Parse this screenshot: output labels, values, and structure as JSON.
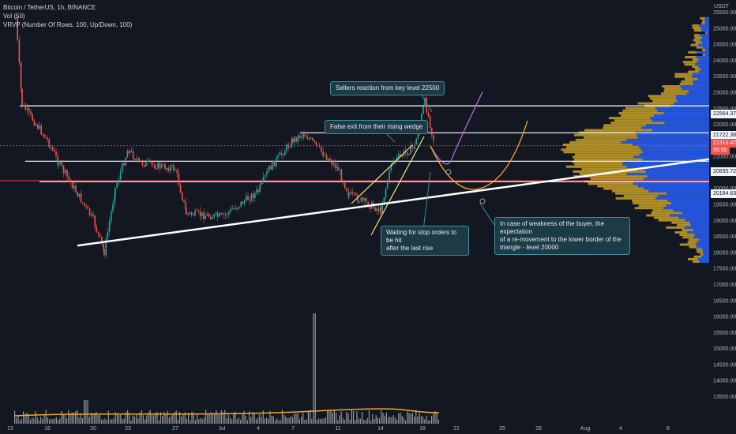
{
  "header": {
    "title": "Bitcoin / TetherUS, 1h, BINANCE",
    "vol": "Vol (50)",
    "vrvp": "VRVP (Number Of Rows, 100, Up/Down, 100)"
  },
  "currency": "USDT",
  "annotations": {
    "sellers": "Sellers reaction from key level 22500",
    "false_exit": "False exit from their rising wedge",
    "stop_orders": "Waiting for stop orders to be hit\nafter the last rise",
    "weakness": "In case of weakness of the buyer, the expectation\nof a re-movement to the lower border of the\ntriangle - level 20000"
  },
  "price_tags": {
    "level_22564": "22564.37",
    "level_21722": "21722.38",
    "current_price": "21316.47",
    "countdown": "55:55",
    "level_20835": "20835.72",
    "level_20194": "20194.63"
  },
  "colors": {
    "background": "#131722",
    "up_candle": "#26a69a",
    "down_candle": "#ef5350",
    "wedge": "#f7e27a",
    "purple_path": "#b06ad8",
    "orange_path": "#f5a623",
    "profile_up": "#2962ff",
    "profile_down": "#c9a227",
    "volume": "#c0c0c0"
  },
  "chart_data": {
    "type": "candlestick",
    "symbol": "Bitcoin / TetherUS",
    "interval": "1h",
    "exchange": "BINANCE",
    "y_axis": {
      "unit": "USDT",
      "ticks": [
        25500,
        25000,
        24500,
        24000,
        23500,
        23000,
        22500,
        22000,
        21500,
        21000,
        20500,
        20000,
        19500,
        19000,
        18500,
        18000,
        17500,
        17000,
        16500,
        16000,
        15500,
        15000,
        14500,
        14000,
        13500
      ],
      "tick_labels": [
        "25500.00",
        "25000.00",
        "24500.00",
        "24000.00",
        "23500.00",
        "23000.00",
        "22500.00",
        "22000.00",
        "21500.00",
        "21000.00",
        "20500.00",
        "20000.00",
        "19500.00",
        "19000.00",
        "18500.00",
        "18000.00",
        "17500.00",
        "17000.00",
        "16500.00",
        "16000.00",
        "15500.00",
        "15000.00",
        "14500.00",
        "14000.00",
        "13500.00"
      ]
    },
    "x_axis": {
      "labels": [
        "13",
        "16",
        "20",
        "23",
        "27",
        "Jul",
        "4",
        "7",
        "11",
        "14",
        "18",
        "21",
        "25",
        "28",
        "Aug",
        "4",
        "8"
      ]
    },
    "horizontal_levels": [
      22564.37,
      21722.38,
      20835.72,
      20194.63
    ],
    "current_price": 21316.47,
    "price_path": [
      {
        "x": "13",
        "close": 25300
      },
      {
        "x": "13",
        "close": 22600
      },
      {
        "x": "16",
        "close": 21500
      },
      {
        "x": "16",
        "close": 20800
      },
      {
        "x": "20",
        "close": 19000
      },
      {
        "x": "20",
        "close": 18000
      },
      {
        "x": "20",
        "close": 20000
      },
      {
        "x": "23",
        "close": 21200
      },
      {
        "x": "23",
        "close": 20800
      },
      {
        "x": "27",
        "close": 20600
      },
      {
        "x": "27",
        "close": 19200
      },
      {
        "x": "Jul",
        "close": 19100
      },
      {
        "x": "4",
        "close": 19900
      },
      {
        "x": "4",
        "close": 20600
      },
      {
        "x": "7",
        "close": 21500
      },
      {
        "x": "7",
        "close": 21700
      },
      {
        "x": "11",
        "close": 20600
      },
      {
        "x": "11",
        "close": 19800
      },
      {
        "x": "14",
        "close": 19300
      },
      {
        "x": "14",
        "close": 20800
      },
      {
        "x": "18",
        "close": 21300
      },
      {
        "x": "18",
        "close": 22700
      },
      {
        "x": "18",
        "close": 21316
      }
    ],
    "projections": [
      {
        "name": "",
        "points": [
          {
            "x": "18",
            "y": 21316
          },
          {
            "x": "21",
            "y": 20900
          },
          {
            "x": "23",
            "y": 21700
          },
          {
            "x": "25",
            "y": 23000
          }
        ]
      },
      {
        "name": "",
        "points": [
          {
            "x": "18",
            "y": 21316
          },
          {
            "x": "21",
            "y": 20600
          },
          {
            "x": "23",
            "y": 20000
          },
          {
            "x": "25",
            "y": 20300
          },
          {
            "x": "28",
            "y": 22100
          }
        ]
      }
    ],
    "trendline": {
      "from": {
        "x": "20",
        "y": 18200
      },
      "to": {
        "x": "8",
        "y": 20900
      }
    },
    "grid": false
  }
}
